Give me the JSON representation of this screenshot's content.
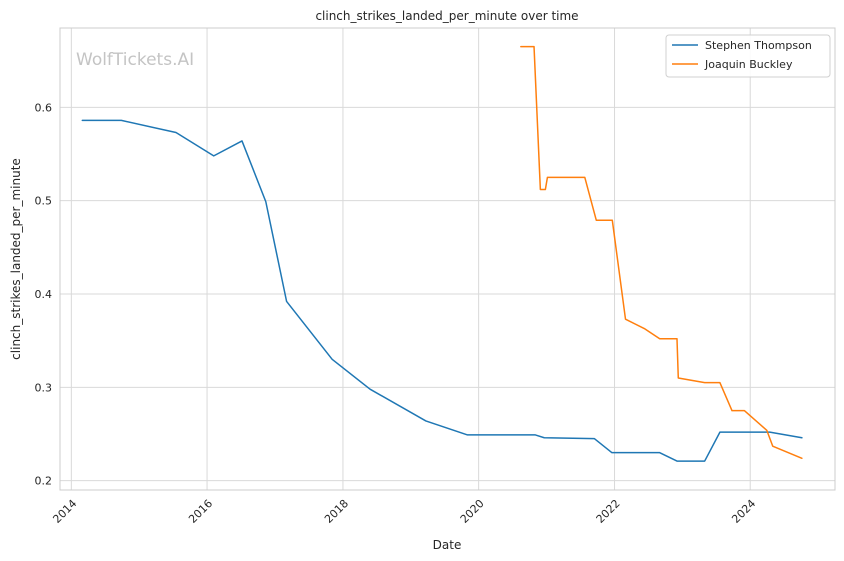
{
  "chart_data": {
    "type": "line",
    "title": "clinch_strikes_landed_per_minute over time",
    "xlabel": "Date",
    "ylabel": "clinch_strikes_landed_per_minute",
    "watermark": "WolfTickets.AI",
    "grid": true,
    "legend_position": "top-right",
    "xlim": [
      "2013-11-01",
      "2025-04-01"
    ],
    "ylim": [
      0.19,
      0.685
    ],
    "x_ticks": [
      "2014-01-01",
      "2016-01-01",
      "2018-01-01",
      "2020-01-01",
      "2022-01-01",
      "2024-01-01"
    ],
    "x_tick_labels": [
      "2014",
      "2016",
      "2018",
      "2020",
      "2022",
      "2024"
    ],
    "y_ticks": [
      0.2,
      0.3,
      0.4,
      0.5,
      0.6
    ],
    "y_tick_labels": [
      "0.2",
      "0.3",
      "0.4",
      "0.5",
      "0.6"
    ],
    "series": [
      {
        "name": "Stephen Thompson",
        "color": "#1f77b4",
        "x": [
          "2014-03-01",
          "2014-09-27",
          "2015-07-18",
          "2016-02-06",
          "2016-07-07",
          "2016-11-12",
          "2017-03-04",
          "2017-11-04",
          "2018-05-27",
          "2019-03-23",
          "2019-11-02",
          "2020-11-01",
          "2020-12-19",
          "2021-09-15",
          "2021-12-18",
          "2022-09-01",
          "2022-12-03",
          "2023-05-01",
          "2023-07-22",
          "2024-04-15",
          "2024-10-05"
        ],
        "y": [
          0.586,
          0.586,
          0.573,
          0.548,
          0.564,
          0.499,
          0.392,
          0.33,
          0.298,
          0.264,
          0.249,
          0.249,
          0.246,
          0.245,
          0.23,
          0.23,
          0.221,
          0.221,
          0.252,
          0.252,
          0.246
        ]
      },
      {
        "name": "Joaquin Buckley",
        "color": "#ff7f0e",
        "x": [
          "2020-08-15",
          "2020-10-25",
          "2020-11-28",
          "2020-12-25",
          "2021-01-05",
          "2021-07-25",
          "2021-09-25",
          "2021-12-20",
          "2022-03-01",
          "2022-06-10",
          "2022-09-01",
          "2022-12-03",
          "2022-12-10",
          "2023-05-01",
          "2023-07-22",
          "2023-09-25",
          "2023-12-01",
          "2024-03-30",
          "2024-05-01",
          "2024-10-05"
        ],
        "y": [
          0.665,
          0.665,
          0.512,
          0.512,
          0.525,
          0.525,
          0.479,
          0.479,
          0.373,
          0.363,
          0.352,
          0.352,
          0.31,
          0.305,
          0.305,
          0.275,
          0.275,
          0.254,
          0.237,
          0.224
        ]
      }
    ]
  }
}
